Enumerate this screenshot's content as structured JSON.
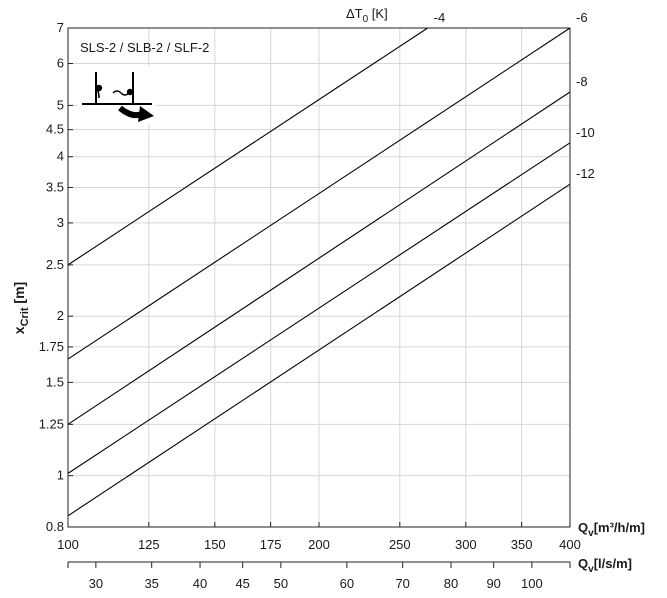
{
  "chart_data": {
    "type": "line",
    "title": "",
    "annotation": "SLS-2 / SLB-2 / SLF-2",
    "series_axis_label_main": "ΔT",
    "series_axis_label_sub": "0",
    "series_axis_label_unit": " [K]",
    "ylabel_main": "x",
    "ylabel_sub": "Crit",
    "ylabel_unit": " [m]",
    "xlabel_main": "Q",
    "xlabel_sub": "v",
    "xlabel_unit": "[m³/h/m]",
    "x2label_main": "Q",
    "x2label_sub": "v",
    "x2label_unit": "[l/s/m]",
    "xscale": "log",
    "yscale": "log",
    "grid": true,
    "xlim": [
      100,
      400
    ],
    "ylim": [
      0.8,
      7
    ],
    "x_ticks": [
      100,
      125,
      150,
      175,
      200,
      250,
      300,
      350,
      400
    ],
    "x_tick_labels": [
      "100",
      "125",
      "150",
      "175",
      "200",
      "250",
      "300",
      "350",
      "400"
    ],
    "y_ticks": [
      0.8,
      1,
      1.25,
      1.5,
      1.75,
      2,
      2.5,
      3,
      3.5,
      4,
      4.5,
      5,
      6,
      7
    ],
    "y_tick_labels": [
      "0.8",
      "1",
      "1.25",
      "1.5",
      "1.75",
      "2",
      "2.5",
      "3",
      "3.5",
      "4",
      "4.5",
      "5",
      "6",
      "7"
    ],
    "x2_ticks": [
      30,
      35,
      40,
      45,
      50,
      60,
      70,
      80,
      90,
      100
    ],
    "x2_tick_labels": [
      "30",
      "35",
      "40",
      "45",
      "50",
      "60",
      "70",
      "80",
      "90",
      "100"
    ],
    "series": [
      {
        "name": "-4",
        "x": [
          100,
          270
        ],
        "y": [
          2.5,
          7.0
        ]
      },
      {
        "name": "-6",
        "x": [
          100,
          400
        ],
        "y": [
          1.66,
          7.0
        ]
      },
      {
        "name": "-8",
        "x": [
          100,
          400
        ],
        "y": [
          1.25,
          5.3
        ]
      },
      {
        "name": "-10",
        "x": [
          100,
          400
        ],
        "y": [
          1.01,
          4.25
        ]
      },
      {
        "name": "-12",
        "x": [
          100,
          400
        ],
        "y": [
          0.84,
          3.55
        ]
      }
    ]
  }
}
